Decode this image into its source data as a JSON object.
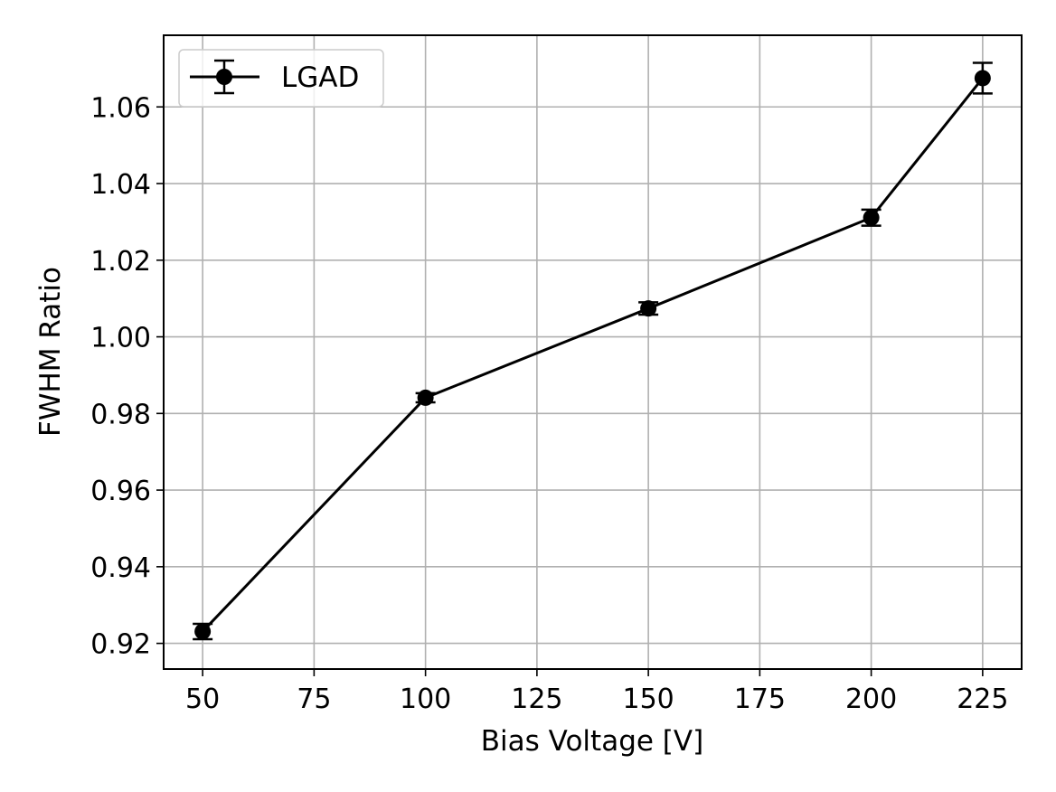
{
  "chart_data": {
    "type": "line",
    "title": "",
    "xlabel": "Bias Voltage [V]",
    "ylabel": "FWHM Ratio",
    "xlim": [
      41.25,
      233.75
    ],
    "ylim": [
      0.9133,
      1.0787
    ],
    "xticks": [
      50,
      75,
      100,
      125,
      150,
      175,
      200,
      225
    ],
    "xtick_labels": [
      "50",
      "75",
      "100",
      "125",
      "150",
      "175",
      "200",
      "225"
    ],
    "yticks": [
      0.92,
      0.94,
      0.96,
      0.98,
      1.0,
      1.02,
      1.04,
      1.06
    ],
    "ytick_labels": [
      "0.92",
      "0.94",
      "0.96",
      "0.98",
      "1.00",
      "1.02",
      "1.04",
      "1.06"
    ],
    "grid": true,
    "legend_position": "top-left",
    "series": [
      {
        "name": "LGAD",
        "color": "#000000",
        "marker": "circle",
        "x": [
          50,
          100,
          150,
          200,
          225
        ],
        "y": [
          0.9231,
          0.9841,
          1.0074,
          1.0311,
          1.0675
        ],
        "yerr": [
          0.002,
          0.0012,
          0.0016,
          0.0021,
          0.004
        ]
      }
    ]
  }
}
